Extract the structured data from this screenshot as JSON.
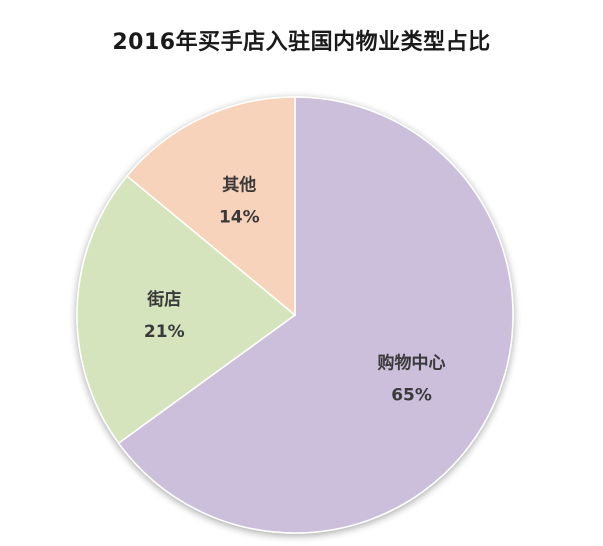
{
  "chart_data": {
    "type": "pie",
    "title": "2016年买手店入驻国内物业类型占比",
    "slices": [
      {
        "label": "购物中心",
        "value": 65,
        "value_label": "65%",
        "color": "#cbbfdb"
      },
      {
        "label": "街店",
        "value": 21,
        "value_label": "21%",
        "color": "#d6e4be"
      },
      {
        "label": "其他",
        "value": 14,
        "value_label": "14%",
        "color": "#f8d3bb"
      }
    ],
    "legend": "none",
    "start_angle": "12 o'clock, clockwise"
  }
}
